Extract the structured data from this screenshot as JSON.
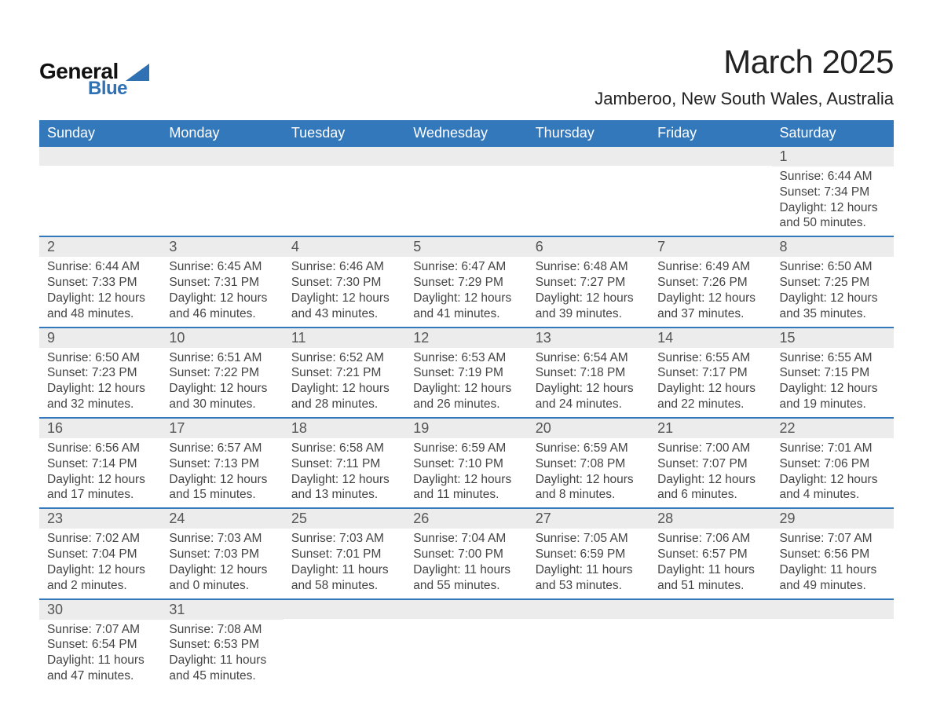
{
  "logo": {
    "text_top": "General",
    "text_bottom": "Blue",
    "accent_color": "#2f71b3"
  },
  "header": {
    "month_title": "March 2025",
    "location": "Jamberoo, New South Wales, Australia"
  },
  "colors": {
    "header_bg": "#3478bc",
    "header_text": "#ffffff",
    "daynum_bg": "#ececec",
    "row_divider": "#3478bc",
    "body_text": "#444444",
    "title_text": "#222222"
  },
  "calendar": {
    "day_labels": [
      "Sunday",
      "Monday",
      "Tuesday",
      "Wednesday",
      "Thursday",
      "Friday",
      "Saturday"
    ],
    "weeks": [
      [
        {
          "day": "",
          "lines": []
        },
        {
          "day": "",
          "lines": []
        },
        {
          "day": "",
          "lines": []
        },
        {
          "day": "",
          "lines": []
        },
        {
          "day": "",
          "lines": []
        },
        {
          "day": "",
          "lines": []
        },
        {
          "day": "1",
          "lines": [
            "Sunrise: 6:44 AM",
            "Sunset: 7:34 PM",
            "Daylight: 12 hours and 50 minutes."
          ]
        }
      ],
      [
        {
          "day": "2",
          "lines": [
            "Sunrise: 6:44 AM",
            "Sunset: 7:33 PM",
            "Daylight: 12 hours and 48 minutes."
          ]
        },
        {
          "day": "3",
          "lines": [
            "Sunrise: 6:45 AM",
            "Sunset: 7:31 PM",
            "Daylight: 12 hours and 46 minutes."
          ]
        },
        {
          "day": "4",
          "lines": [
            "Sunrise: 6:46 AM",
            "Sunset: 7:30 PM",
            "Daylight: 12 hours and 43 minutes."
          ]
        },
        {
          "day": "5",
          "lines": [
            "Sunrise: 6:47 AM",
            "Sunset: 7:29 PM",
            "Daylight: 12 hours and 41 minutes."
          ]
        },
        {
          "day": "6",
          "lines": [
            "Sunrise: 6:48 AM",
            "Sunset: 7:27 PM",
            "Daylight: 12 hours and 39 minutes."
          ]
        },
        {
          "day": "7",
          "lines": [
            "Sunrise: 6:49 AM",
            "Sunset: 7:26 PM",
            "Daylight: 12 hours and 37 minutes."
          ]
        },
        {
          "day": "8",
          "lines": [
            "Sunrise: 6:50 AM",
            "Sunset: 7:25 PM",
            "Daylight: 12 hours and 35 minutes."
          ]
        }
      ],
      [
        {
          "day": "9",
          "lines": [
            "Sunrise: 6:50 AM",
            "Sunset: 7:23 PM",
            "Daylight: 12 hours and 32 minutes."
          ]
        },
        {
          "day": "10",
          "lines": [
            "Sunrise: 6:51 AM",
            "Sunset: 7:22 PM",
            "Daylight: 12 hours and 30 minutes."
          ]
        },
        {
          "day": "11",
          "lines": [
            "Sunrise: 6:52 AM",
            "Sunset: 7:21 PM",
            "Daylight: 12 hours and 28 minutes."
          ]
        },
        {
          "day": "12",
          "lines": [
            "Sunrise: 6:53 AM",
            "Sunset: 7:19 PM",
            "Daylight: 12 hours and 26 minutes."
          ]
        },
        {
          "day": "13",
          "lines": [
            "Sunrise: 6:54 AM",
            "Sunset: 7:18 PM",
            "Daylight: 12 hours and 24 minutes."
          ]
        },
        {
          "day": "14",
          "lines": [
            "Sunrise: 6:55 AM",
            "Sunset: 7:17 PM",
            "Daylight: 12 hours and 22 minutes."
          ]
        },
        {
          "day": "15",
          "lines": [
            "Sunrise: 6:55 AM",
            "Sunset: 7:15 PM",
            "Daylight: 12 hours and 19 minutes."
          ]
        }
      ],
      [
        {
          "day": "16",
          "lines": [
            "Sunrise: 6:56 AM",
            "Sunset: 7:14 PM",
            "Daylight: 12 hours and 17 minutes."
          ]
        },
        {
          "day": "17",
          "lines": [
            "Sunrise: 6:57 AM",
            "Sunset: 7:13 PM",
            "Daylight: 12 hours and 15 minutes."
          ]
        },
        {
          "day": "18",
          "lines": [
            "Sunrise: 6:58 AM",
            "Sunset: 7:11 PM",
            "Daylight: 12 hours and 13 minutes."
          ]
        },
        {
          "day": "19",
          "lines": [
            "Sunrise: 6:59 AM",
            "Sunset: 7:10 PM",
            "Daylight: 12 hours and 11 minutes."
          ]
        },
        {
          "day": "20",
          "lines": [
            "Sunrise: 6:59 AM",
            "Sunset: 7:08 PM",
            "Daylight: 12 hours and 8 minutes."
          ]
        },
        {
          "day": "21",
          "lines": [
            "Sunrise: 7:00 AM",
            "Sunset: 7:07 PM",
            "Daylight: 12 hours and 6 minutes."
          ]
        },
        {
          "day": "22",
          "lines": [
            "Sunrise: 7:01 AM",
            "Sunset: 7:06 PM",
            "Daylight: 12 hours and 4 minutes."
          ]
        }
      ],
      [
        {
          "day": "23",
          "lines": [
            "Sunrise: 7:02 AM",
            "Sunset: 7:04 PM",
            "Daylight: 12 hours and 2 minutes."
          ]
        },
        {
          "day": "24",
          "lines": [
            "Sunrise: 7:03 AM",
            "Sunset: 7:03 PM",
            "Daylight: 12 hours and 0 minutes."
          ]
        },
        {
          "day": "25",
          "lines": [
            "Sunrise: 7:03 AM",
            "Sunset: 7:01 PM",
            "Daylight: 11 hours and 58 minutes."
          ]
        },
        {
          "day": "26",
          "lines": [
            "Sunrise: 7:04 AM",
            "Sunset: 7:00 PM",
            "Daylight: 11 hours and 55 minutes."
          ]
        },
        {
          "day": "27",
          "lines": [
            "Sunrise: 7:05 AM",
            "Sunset: 6:59 PM",
            "Daylight: 11 hours and 53 minutes."
          ]
        },
        {
          "day": "28",
          "lines": [
            "Sunrise: 7:06 AM",
            "Sunset: 6:57 PM",
            "Daylight: 11 hours and 51 minutes."
          ]
        },
        {
          "day": "29",
          "lines": [
            "Sunrise: 7:07 AM",
            "Sunset: 6:56 PM",
            "Daylight: 11 hours and 49 minutes."
          ]
        }
      ],
      [
        {
          "day": "30",
          "lines": [
            "Sunrise: 7:07 AM",
            "Sunset: 6:54 PM",
            "Daylight: 11 hours and 47 minutes."
          ]
        },
        {
          "day": "31",
          "lines": [
            "Sunrise: 7:08 AM",
            "Sunset: 6:53 PM",
            "Daylight: 11 hours and 45 minutes."
          ]
        },
        {
          "day": "",
          "lines": []
        },
        {
          "day": "",
          "lines": []
        },
        {
          "day": "",
          "lines": []
        },
        {
          "day": "",
          "lines": []
        },
        {
          "day": "",
          "lines": []
        }
      ]
    ]
  }
}
